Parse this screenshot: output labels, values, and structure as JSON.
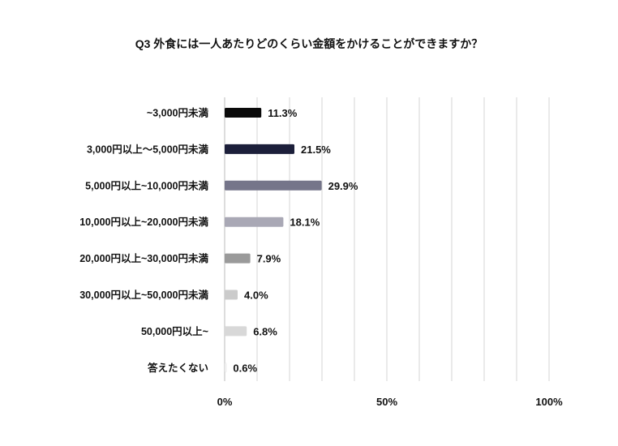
{
  "chart_data": {
    "type": "bar",
    "orientation": "horizontal",
    "title": "Q3 外食には一人あたりどのくらい金額をかけることができますか？",
    "categories": [
      "~3,000円未満",
      "3,000円以上～5,000円未満",
      "5,000円以上~10,000円未満",
      "10,000円以上~20,000円未満",
      "20,000円以上~30,000円未満",
      "30,000円以上~50,000円未満",
      "50,000円以上~",
      "答えたくない"
    ],
    "values": [
      11.3,
      21.5,
      29.9,
      18.1,
      7.9,
      4.0,
      6.8,
      0.6
    ],
    "value_labels": [
      "11.3%",
      "21.5%",
      "29.9%",
      "18.1%",
      "7.9%",
      "4.0%",
      "6.8%",
      "0.6%"
    ],
    "colors": [
      "#0a0a0a",
      "#1c1f3a",
      "#75758a",
      "#a9a8b5",
      "#9a9a9a",
      "#cbcbcb",
      "#d8d8d8",
      "#eeeeee"
    ],
    "xlim": [
      0,
      100
    ],
    "xticks": [
      0,
      50,
      100
    ],
    "xtick_labels": [
      "0%",
      "50%",
      "100%"
    ],
    "grid": true,
    "grid_step": 10,
    "xlabel": "",
    "ylabel": ""
  }
}
